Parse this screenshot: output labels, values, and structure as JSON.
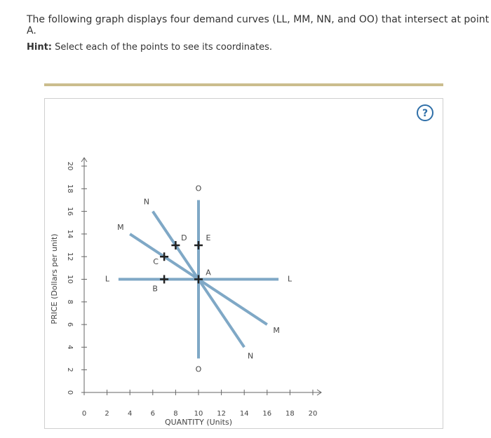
{
  "question": "The following graph displays four demand curves (LL, MM, NN, and OO) that intersect at point A.",
  "hint_label": "Hint:",
  "hint_text": "Select each of the points to see its coordinates.",
  "help_icon": "?",
  "chart_data": {
    "type": "line",
    "x_label": "QUANTITY (Units)",
    "y_label": "PRICE (Dollars per unit)",
    "xlim": [
      0,
      20
    ],
    "xticks": [
      0,
      2,
      4,
      6,
      8,
      10,
      12,
      14,
      16,
      18,
      20
    ],
    "ylim": [
      0,
      20
    ],
    "yticks": [
      0,
      2,
      4,
      6,
      8,
      10,
      12,
      14,
      16,
      18,
      20
    ],
    "series": [
      {
        "name": "L",
        "color": "#7fa8c6",
        "x": [
          3,
          17
        ],
        "values": [
          10,
          10
        ]
      },
      {
        "name": "M",
        "color": "#7fa8c6",
        "x": [
          4,
          16
        ],
        "values": [
          14,
          6
        ]
      },
      {
        "name": "N",
        "color": "#7fa8c6",
        "x": [
          6,
          14
        ],
        "values": [
          16,
          4
        ]
      },
      {
        "name": "O",
        "color": "#7fa8c6",
        "x": [
          10,
          10
        ],
        "values": [
          17,
          3
        ]
      }
    ],
    "points": [
      {
        "label": "A",
        "x": 10,
        "y": 10
      },
      {
        "label": "B",
        "x": 7,
        "y": 10
      },
      {
        "label": "C",
        "x": 7,
        "y": 12
      },
      {
        "label": "D",
        "x": 8,
        "y": 13
      },
      {
        "label": "E",
        "x": 10,
        "y": 13
      }
    ]
  }
}
